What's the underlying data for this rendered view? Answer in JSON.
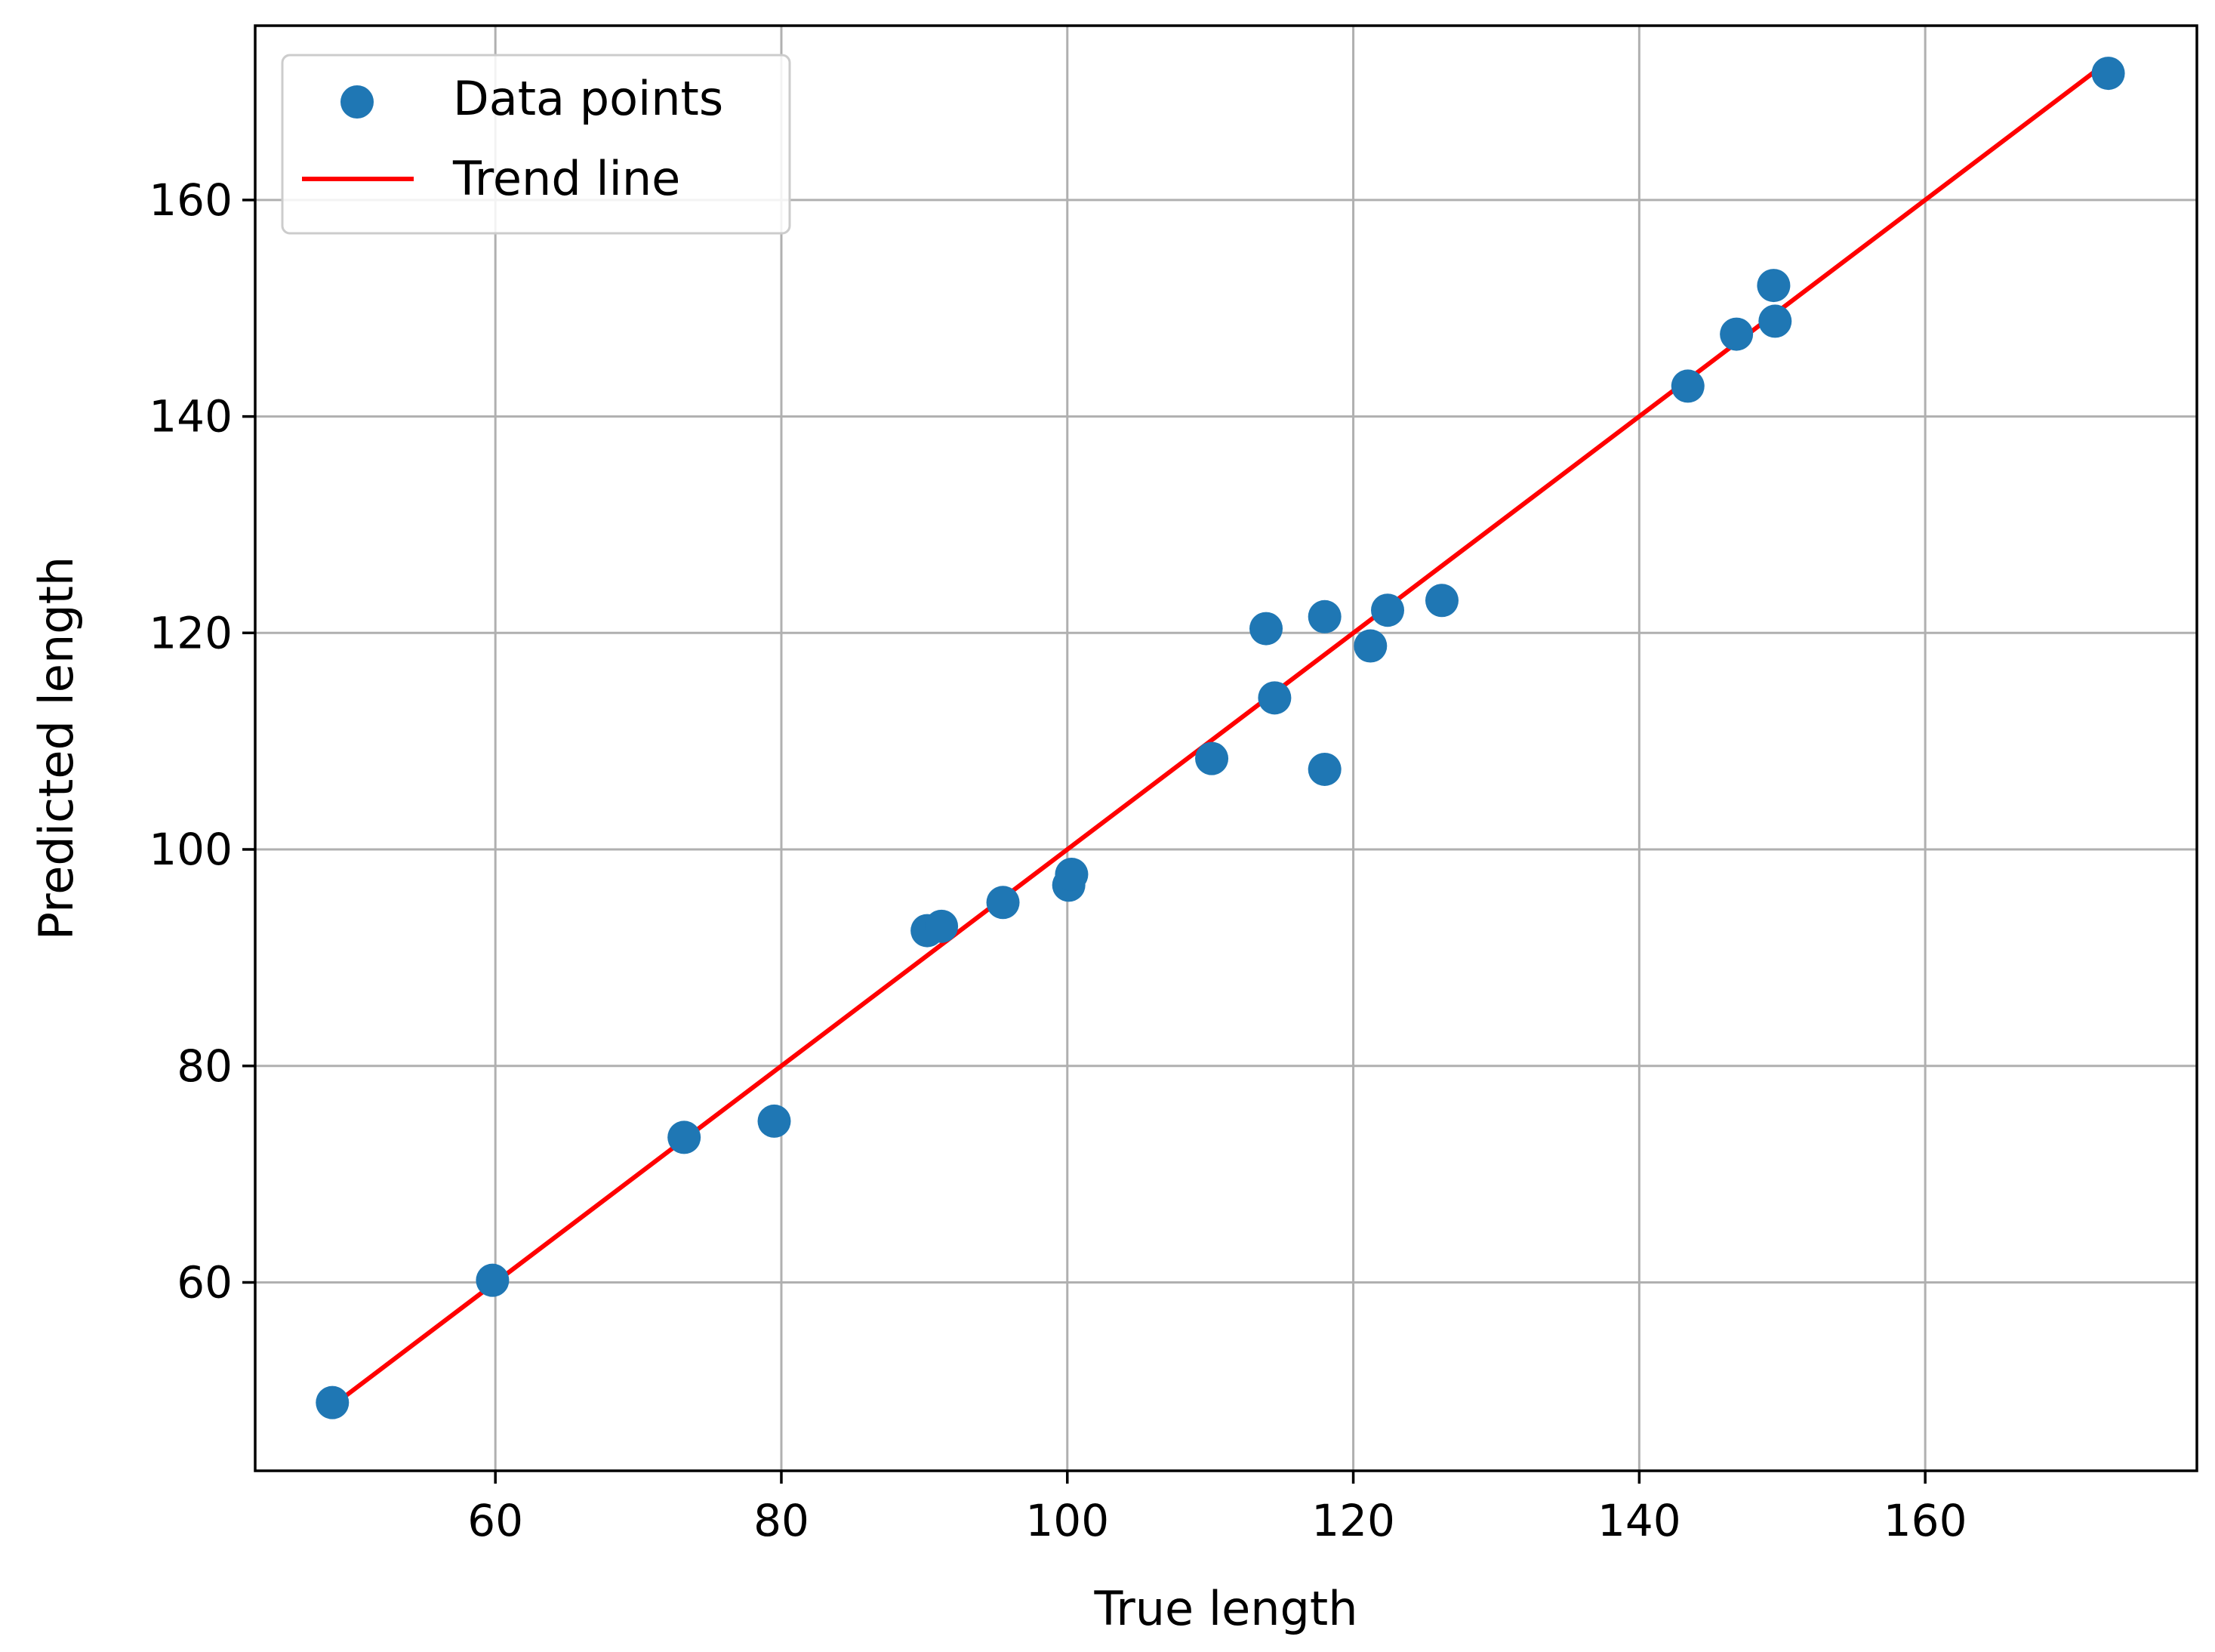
{
  "chart_data": {
    "type": "scatter",
    "xlabel": "True length",
    "ylabel": "Predicted length",
    "xlim": [
      43.2,
      179.0
    ],
    "ylim": [
      42.6,
      176.1
    ],
    "xticks": [
      60,
      80,
      100,
      120,
      140,
      160
    ],
    "yticks": [
      60,
      80,
      100,
      120,
      140,
      160
    ],
    "grid": true,
    "legend_position": "top-left",
    "series": [
      {
        "name": "Data points",
        "kind": "scatter",
        "color": "#1f77b4",
        "x": [
          48.6,
          59.8,
          73.2,
          79.5,
          90.2,
          91.2,
          95.5,
          100.1,
          100.3,
          110.1,
          113.9,
          114.5,
          118.0,
          118.0,
          121.2,
          122.4,
          126.2,
          143.4,
          146.8,
          149.4,
          149.5,
          172.8
        ],
        "y": [
          48.9,
          60.2,
          73.4,
          74.9,
          92.5,
          92.9,
          95.1,
          96.7,
          97.7,
          108.4,
          120.4,
          114.0,
          121.5,
          107.4,
          118.8,
          122.1,
          123.0,
          142.8,
          147.6,
          152.1,
          148.8,
          171.7
        ]
      },
      {
        "name": "Trend line",
        "kind": "line",
        "color": "#ff0000",
        "x": [
          48.6,
          172.8
        ],
        "y": [
          48.6,
          172.8
        ]
      }
    ]
  }
}
